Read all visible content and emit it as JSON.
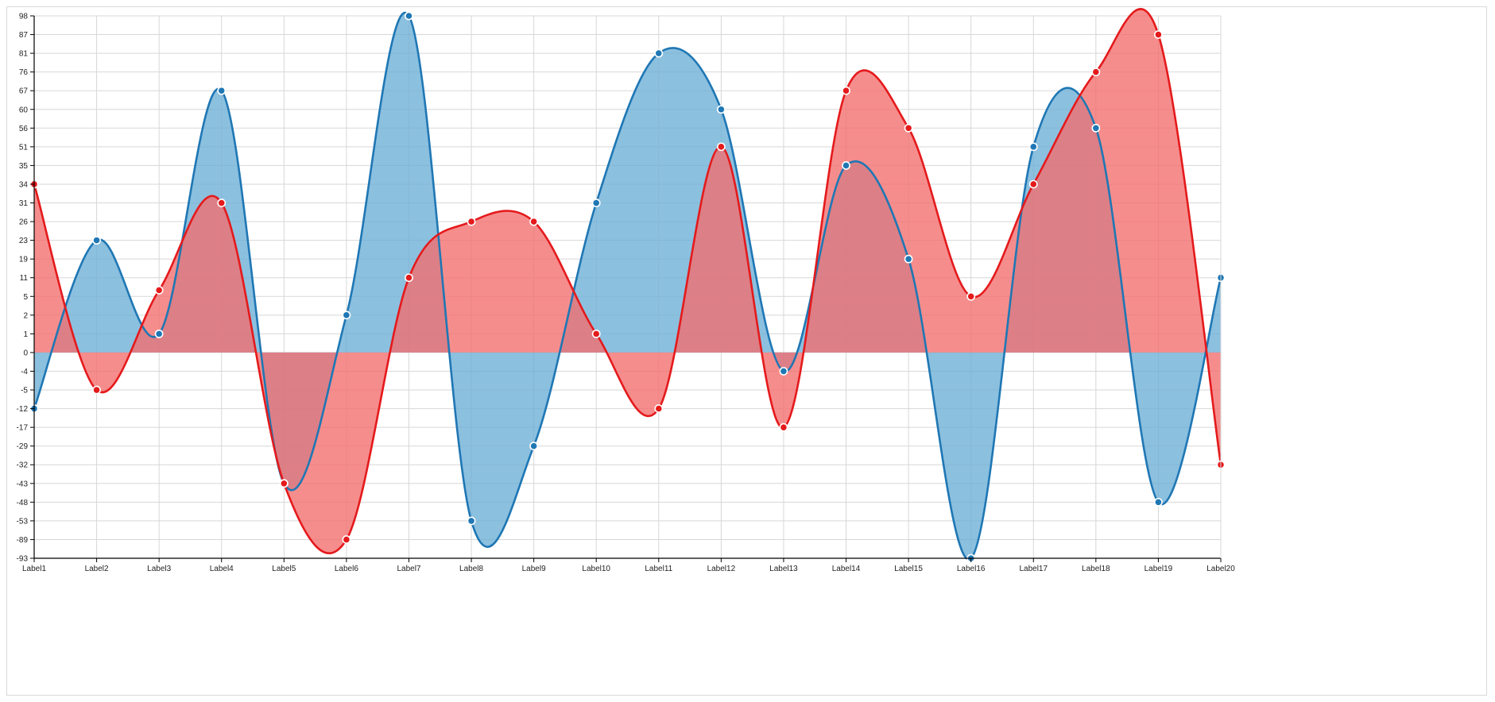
{
  "chart_data": {
    "type": "area",
    "y_ticks": [
      "98",
      "87",
      "81",
      "76",
      "67",
      "60",
      "56",
      "51",
      "35",
      "34",
      "31",
      "26",
      "23",
      "19",
      "11",
      "5",
      "2",
      "1",
      "0",
      "-4",
      "-5",
      "-12",
      "-17",
      "-29",
      "-32",
      "-43",
      "-48",
      "-53",
      "-89",
      "-93"
    ],
    "categories": [
      "Label1",
      "Label2",
      "Label3",
      "Label4",
      "Label5",
      "Label6",
      "Label7",
      "Label8",
      "Label9",
      "Label10",
      "Label11",
      "Label12",
      "Label13",
      "Label14",
      "Label15",
      "Label16",
      "Label17",
      "Label18",
      "Label19",
      "Label20"
    ],
    "series": [
      {
        "color": "#1f77b4",
        "fill": "#6baed6",
        "values": [
          -12,
          23,
          1,
          67,
          -43,
          2,
          98,
          -53,
          -29,
          31,
          81,
          60,
          -4,
          35,
          19,
          -93,
          51,
          56,
          -48,
          11
        ]
      },
      {
        "color": "#e41a1c",
        "fill": "#f46d6d",
        "values": [
          34,
          -5,
          7,
          31,
          -43,
          -89,
          11,
          26,
          26,
          1,
          -12,
          51,
          -17,
          67,
          56,
          5,
          34,
          76,
          87,
          -32
        ]
      }
    ],
    "grid": true,
    "ylim": [
      -93,
      98
    ]
  }
}
